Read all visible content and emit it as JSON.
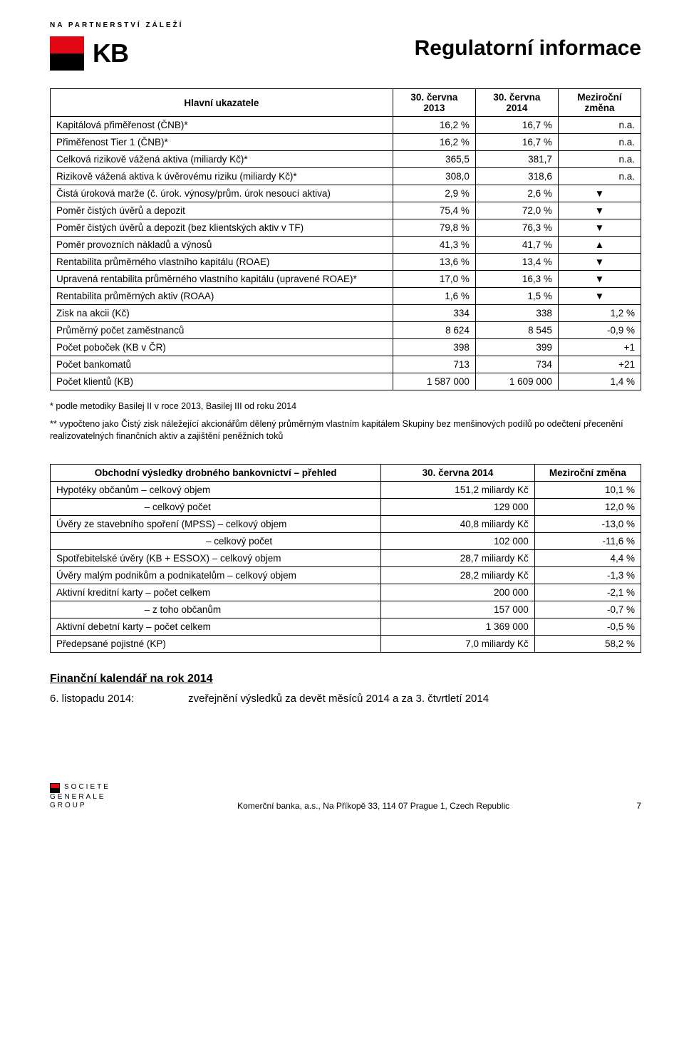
{
  "tagline": "NA PARTNERSTVÍ ZÁLEŽÍ",
  "logo_text": "KB",
  "doc_title": "Regulatorní informace",
  "colors": {
    "brand_red": "#e30613",
    "text": "#000000",
    "bg": "#ffffff",
    "border": "#000000"
  },
  "table1": {
    "headers": [
      "Hlavní ukazatele",
      "30. června 2013",
      "30. června 2014",
      "Meziroční změna"
    ],
    "rows": [
      [
        "Kapitálová přiměřenost (ČNB)*",
        "16,2 %",
        "16,7 %",
        "n.a."
      ],
      [
        "Přiměřenost Tier 1 (ČNB)*",
        "16,2 %",
        "16,7 %",
        "n.a."
      ],
      [
        "Celková rizikově vážená aktiva (miliardy Kč)*",
        "365,5",
        "381,7",
        "n.a."
      ],
      [
        "Rizikově vážená aktiva k úvěrovému riziku (miliardy Kč)*",
        "308,0",
        "318,6",
        "n.a."
      ],
      [
        "Čistá úroková marže (č. úrok. výnosy/prům. úrok nesoucí aktiva)",
        "2,9 %",
        "2,6 %",
        "▼"
      ],
      [
        "Poměr čistých úvěrů a depozit",
        "75,4 %",
        "72,0 %",
        "▼"
      ],
      [
        "Poměr čistých úvěrů a depozit (bez klientských aktiv v TF)",
        "79,8 %",
        "76,3 %",
        "▼"
      ],
      [
        "Poměr provozních nákladů a výnosů",
        "41,3 %",
        "41,7 %",
        "▲"
      ],
      [
        "Rentabilita průměrného vlastního kapitálu (ROAE)",
        "13,6 %",
        "13,4 %",
        "▼"
      ],
      [
        "Upravená rentabilita průměrného vlastního kapitálu (upravené ROAE)*",
        "17,0 %",
        "16,3 %",
        "▼"
      ],
      [
        "Rentabilita průměrných aktiv (ROAA)",
        "1,6 %",
        "1,5 %",
        "▼"
      ],
      [
        "Zisk na akcii (Kč)",
        "334",
        "338",
        "1,2 %"
      ],
      [
        "Průměrný počet zaměstnanců",
        "8 624",
        "8 545",
        "-0,9 %"
      ],
      [
        "Počet poboček (KB v ČR)",
        "398",
        "399",
        "+1"
      ],
      [
        "Počet bankomatů",
        "713",
        "734",
        "+21"
      ],
      [
        "Počet klientů (KB)",
        "1 587 000",
        "1 609 000",
        "1,4 %"
      ]
    ]
  },
  "footnote1": "* podle metodiky Basilej II v roce 2013, Basilej III od roku 2014",
  "footnote2": "** vypočteno jako Čistý zisk náležející akcionářům dělený průměrným vlastním kapitálem Skupiny bez menšinových podílů po odečtení přecenění realizovatelných finančních aktiv a zajištění peněžních toků",
  "table2": {
    "headers": [
      "Obchodní výsledky drobného bankovnictví – přehled",
      "30. června 2014",
      "Meziroční změna"
    ],
    "rows": [
      [
        "Hypotéky občanům – celkový objem",
        "151,2 miliardy Kč",
        "10,1 %"
      ],
      [
        "                                 – celkový počet",
        "129 000",
        "12,0 %"
      ],
      [
        "Úvěry ze stavebního spoření (MPSS) – celkový objem",
        "40,8 miliardy Kč",
        "-13,0 %"
      ],
      [
        "                                                        – celkový počet",
        "102 000",
        "-11,6 %"
      ],
      [
        "Spotřebitelské úvěry (KB + ESSOX) – celkový objem",
        "28,7 miliardy Kč",
        "4,4 %"
      ],
      [
        "Úvěry malým podnikům a podnikatelům – celkový objem",
        "28,2 miliardy Kč",
        "-1,3 %"
      ],
      [
        "Aktivní kreditní karty – počet celkem",
        "200 000",
        "-2,1 %"
      ],
      [
        "                                 – z toho občanům",
        "157 000",
        "-0,7 %"
      ],
      [
        "Aktivní debetní karty – počet celkem",
        "1 369 000",
        "-0,5 %"
      ],
      [
        "Předepsané pojistné (KP)",
        "7,0 miliardy Kč",
        "58,2 %"
      ]
    ]
  },
  "calendar": {
    "heading": "Finanční kalendář na rok 2014",
    "date": "6. listopadu 2014:",
    "text": "zveřejnění výsledků za devět měsíců 2014 a za 3. čtvrtletí 2014"
  },
  "footer": {
    "sg1": "SOCIETE",
    "sg2": "GENERALE",
    "sg3": "GROUP",
    "address": "Komerční banka, a.s., Na Příkopě 33, 114 07 Prague 1, Czech Republic",
    "page": "7"
  }
}
